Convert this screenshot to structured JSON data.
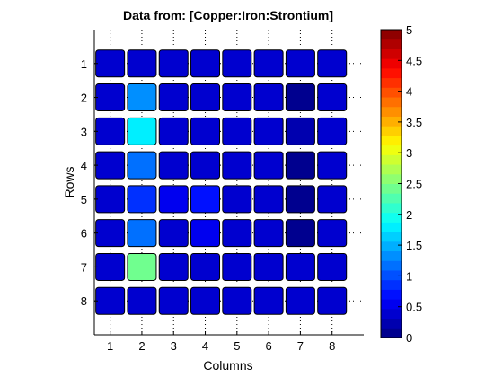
{
  "chart_data": {
    "type": "heatmap",
    "title": "Data from: [Copper:Iron:Strontium]",
    "xlabel": "Columns",
    "ylabel": "Rows",
    "x_ticks": [
      "1",
      "2",
      "3",
      "4",
      "5",
      "6",
      "7",
      "8"
    ],
    "y_ticks": [
      "1",
      "2",
      "3",
      "4",
      "5",
      "6",
      "7",
      "8"
    ],
    "grid": true,
    "colorbar": {
      "min": 0,
      "max": 5,
      "ticks": [
        "0",
        "0.5",
        "1",
        "1.5",
        "2",
        "2.5",
        "3",
        "3.5",
        "4",
        "4.5",
        "5"
      ],
      "tick_values": [
        0,
        0.5,
        1,
        1.5,
        2,
        2.5,
        3,
        3.5,
        4,
        4.5,
        5
      ],
      "colormap": "jet",
      "levels": 32
    },
    "values": [
      [
        0.35,
        0.35,
        0.35,
        0.35,
        0.35,
        0.35,
        0.35,
        0.35
      ],
      [
        0.35,
        1.4,
        0.35,
        0.35,
        0.35,
        0.35,
        0.1,
        0.35
      ],
      [
        0.35,
        1.85,
        0.35,
        0.35,
        0.35,
        0.35,
        0.2,
        0.35
      ],
      [
        0.35,
        1.2,
        0.35,
        0.35,
        0.35,
        0.35,
        0.15,
        0.35
      ],
      [
        0.35,
        0.8,
        0.6,
        0.65,
        0.35,
        0.35,
        0.1,
        0.35
      ],
      [
        0.35,
        1.15,
        0.35,
        0.6,
        0.35,
        0.35,
        0.15,
        0.35
      ],
      [
        0.35,
        2.4,
        0.35,
        0.35,
        0.35,
        0.35,
        0.35,
        0.35
      ],
      [
        0.35,
        0.35,
        0.35,
        0.35,
        0.35,
        0.35,
        0.35,
        0.35
      ]
    ]
  }
}
